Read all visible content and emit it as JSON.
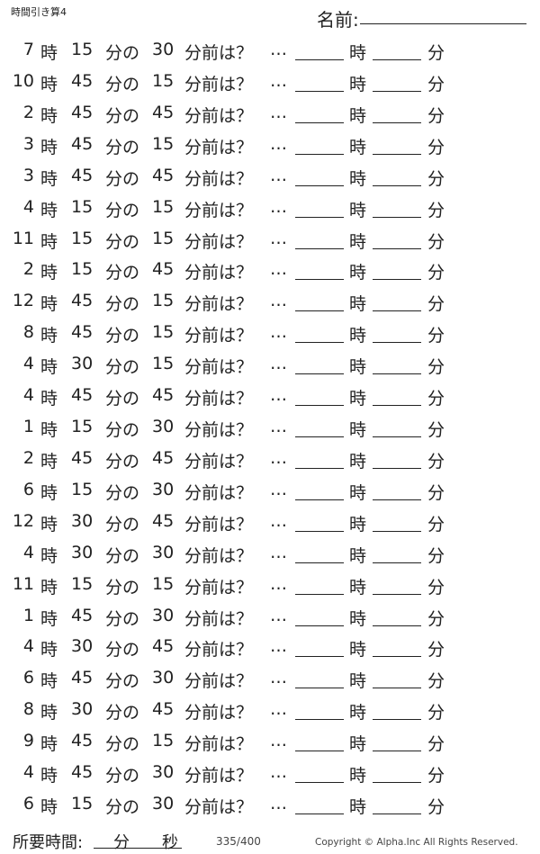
{
  "header": {
    "title": "時間引き算4",
    "name_label": "名前:"
  },
  "labels": {
    "hour": "時",
    "min_of": "分の",
    "min_before": "分前は？",
    "dots": "…",
    "ans_hour": "時",
    "ans_min": "分"
  },
  "problems": [
    {
      "hour": "7",
      "minute": "15",
      "before": "30"
    },
    {
      "hour": "10",
      "minute": "45",
      "before": "15"
    },
    {
      "hour": "2",
      "minute": "45",
      "before": "45"
    },
    {
      "hour": "3",
      "minute": "45",
      "before": "15"
    },
    {
      "hour": "3",
      "minute": "45",
      "before": "45"
    },
    {
      "hour": "4",
      "minute": "15",
      "before": "15"
    },
    {
      "hour": "11",
      "minute": "15",
      "before": "15"
    },
    {
      "hour": "2",
      "minute": "15",
      "before": "45"
    },
    {
      "hour": "12",
      "minute": "45",
      "before": "15"
    },
    {
      "hour": "8",
      "minute": "45",
      "before": "15"
    },
    {
      "hour": "4",
      "minute": "30",
      "before": "15"
    },
    {
      "hour": "4",
      "minute": "45",
      "before": "45"
    },
    {
      "hour": "1",
      "minute": "15",
      "before": "30"
    },
    {
      "hour": "2",
      "minute": "45",
      "before": "45"
    },
    {
      "hour": "6",
      "minute": "15",
      "before": "30"
    },
    {
      "hour": "12",
      "minute": "30",
      "before": "45"
    },
    {
      "hour": "4",
      "minute": "30",
      "before": "30"
    },
    {
      "hour": "11",
      "minute": "15",
      "before": "15"
    },
    {
      "hour": "1",
      "minute": "45",
      "before": "30"
    },
    {
      "hour": "4",
      "minute": "30",
      "before": "45"
    },
    {
      "hour": "6",
      "minute": "45",
      "before": "30"
    },
    {
      "hour": "8",
      "minute": "30",
      "before": "45"
    },
    {
      "hour": "9",
      "minute": "45",
      "before": "15"
    },
    {
      "hour": "4",
      "minute": "45",
      "before": "30"
    },
    {
      "hour": "6",
      "minute": "15",
      "before": "30"
    }
  ],
  "footer": {
    "time_label": "所要時間:",
    "min": "分",
    "sec": "秒",
    "page": "335/400",
    "copyright": "Copyright ©  Alpha.Inc All Rights Reserved."
  }
}
